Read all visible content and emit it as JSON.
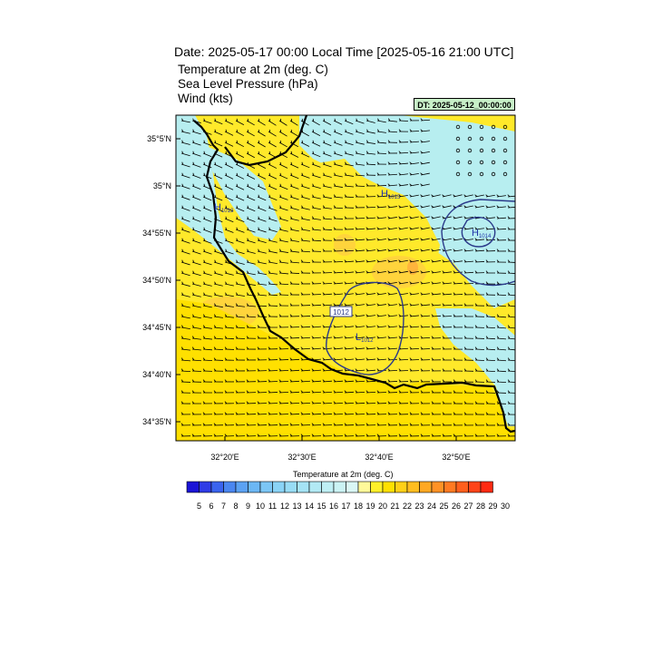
{
  "header": {
    "title": "Date: 2025-05-17  00:00 Local Time [2025-05-16  21:00 UTC]",
    "fields": [
      "Temperature at 2m   (deg. C)",
      "Sea Level Pressure   (hPa)",
      "Wind   (kts)"
    ],
    "dt_label": "DT: 2025-05-12_00:00:00"
  },
  "axes": {
    "lat_labels": [
      "35°5'N",
      "35°N",
      "34°55'N",
      "34°50'N",
      "34°45'N",
      "34°40'N",
      "34°35'N"
    ],
    "lon_labels": [
      "32°20'E",
      "32°30'E",
      "32°40'E",
      "32°50'E"
    ]
  },
  "map": {
    "pressure_markers": [
      {
        "type": "H",
        "value": "1015"
      },
      {
        "type": "H",
        "value": "1013"
      },
      {
        "type": "H",
        "value": "1014"
      },
      {
        "type": "L",
        "value": "1012"
      }
    ],
    "contour_label": "1012",
    "colors": {
      "warm": "#ffe92a",
      "warm_mid": "#ffd43c",
      "cool": "#b7eef0",
      "coast": "#000000",
      "isobar": "#2b3a8a"
    }
  },
  "colorbar": {
    "title": "Temperature at 2m  (deg. C)",
    "labels": [
      "5",
      "6",
      "7",
      "8",
      "9",
      "10",
      "11",
      "12",
      "13",
      "14",
      "15",
      "16",
      "17",
      "18",
      "19",
      "20",
      "21",
      "22",
      "23",
      "24",
      "25",
      "26",
      "27",
      "28",
      "29",
      "30"
    ],
    "colors": [
      "#1a14d6",
      "#2f3ce6",
      "#3a63ee",
      "#4a86f0",
      "#5ca2f3",
      "#6cb7f4",
      "#7cc6f5",
      "#8ad3f6",
      "#98dcf5",
      "#a5e3f5",
      "#b2e9f4",
      "#bfeff4",
      "#cbf3f4",
      "#daf7f5",
      "#fff99a",
      "#fff02a",
      "#ffe000",
      "#ffd018",
      "#ffbd20",
      "#ffa823",
      "#ff9225",
      "#ff7a22",
      "#ff5f1d",
      "#ff4418",
      "#ff2a12"
    ]
  }
}
